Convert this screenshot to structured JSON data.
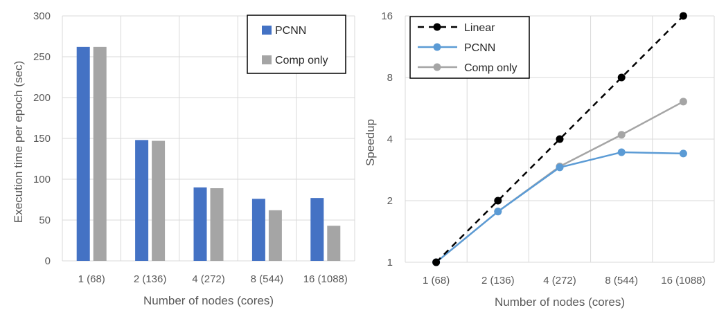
{
  "chart_data": [
    {
      "type": "bar",
      "categories": [
        "1 (68)",
        "2 (136)",
        "4 (272)",
        "8 (544)",
        "16 (1088)"
      ],
      "series": [
        {
          "name": "PCNN",
          "values": [
            262,
            148,
            90,
            76,
            77
          ],
          "color": "#4472C4"
        },
        {
          "name": "Comp only",
          "values": [
            262,
            147,
            89,
            62,
            43
          ],
          "color": "#A5A5A5"
        }
      ],
      "title": "",
      "xlabel": "Number of nodes (cores)",
      "ylabel": "Execution time per epoch (sec)",
      "ylim": [
        0,
        300
      ],
      "yticks": [
        0,
        50,
        100,
        150,
        200,
        250,
        300
      ],
      "grid": true,
      "legend_position": "top-right"
    },
    {
      "type": "line",
      "categories": [
        "1 (68)",
        "2 (136)",
        "4 (272)",
        "8 (544)",
        "16 (1088)"
      ],
      "series": [
        {
          "name": "Linear",
          "values": [
            1,
            2,
            4,
            8,
            16
          ],
          "color": "#000000",
          "dashed": true
        },
        {
          "name": "PCNN",
          "values": [
            1,
            1.77,
            2.91,
            3.45,
            3.4
          ],
          "color": "#5B9BD5",
          "dashed": false
        },
        {
          "name": "Comp only",
          "values": [
            1,
            1.77,
            2.94,
            4.2,
            6.1
          ],
          "color": "#A5A5A5",
          "dashed": false
        }
      ],
      "title": "",
      "xlabel": "Number of nodes (cores)",
      "ylabel": "Speedup",
      "yscale": "log2",
      "ylim": [
        1,
        16
      ],
      "yticks": [
        1,
        2,
        4,
        8,
        16
      ],
      "grid": true,
      "legend_position": "top-left"
    }
  ]
}
